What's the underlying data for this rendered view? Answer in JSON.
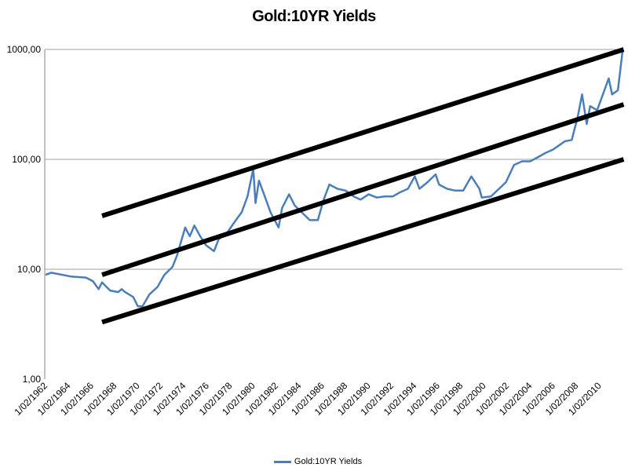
{
  "chart_data": {
    "type": "line",
    "title": "Gold:10YR Yields",
    "xlabel": "",
    "ylabel": "",
    "y_scale": "log",
    "ylim": [
      1,
      1000
    ],
    "y_ticks": [
      "1000,00",
      "100,00",
      "10,00",
      "1,00"
    ],
    "y_tick_values": [
      1000,
      100,
      10,
      1
    ],
    "xlim": [
      1962,
      2012
    ],
    "x_ticks": [
      "1/02/1962",
      "1/02/1964",
      "1/02/1966",
      "1/02/1968",
      "1/02/1970",
      "1/02/1972",
      "1/02/1974",
      "1/02/1976",
      "1/02/1978",
      "1/02/1980",
      "1/02/1982",
      "1/02/1984",
      "1/02/1986",
      "1/02/1988",
      "1/02/1990",
      "1/02/1992",
      "1/02/1994",
      "1/02/1996",
      "1/02/1998",
      "1/02/2000",
      "1/02/2002",
      "1/02/2004",
      "1/02/2006",
      "1/02/2008",
      "1/02/2010"
    ],
    "grid": "horizontal major",
    "legend": "bottom",
    "series": [
      {
        "name": "Gold:10YR Yields",
        "color": "#4a7ebb",
        "x": [
          1962.0,
          1962.5,
          1964.2,
          1965.5,
          1966.1,
          1966.6,
          1966.9,
          1967.6,
          1968.3,
          1968.6,
          1968.9,
          1969.6,
          1970.0,
          1970.4,
          1971.0,
          1971.7,
          1972.3,
          1973.0,
          1973.4,
          1973.8,
          1974.1,
          1974.5,
          1974.9,
          1975.4,
          1975.9,
          1976.6,
          1977.0,
          1977.8,
          1978.5,
          1979.0,
          1979.5,
          1980.0,
          1980.2,
          1980.5,
          1981.0,
          1981.5,
          1982.2,
          1982.5,
          1983.1,
          1983.6,
          1984.2,
          1984.9,
          1985.6,
          1986.1,
          1986.6,
          1987.3,
          1988.0,
          1988.7,
          1989.3,
          1990.0,
          1990.7,
          1991.4,
          1992.1,
          1992.7,
          1993.4,
          1994.0,
          1994.4,
          1995.1,
          1995.8,
          1996.1,
          1996.8,
          1997.5,
          1998.2,
          1998.9,
          1999.6,
          1999.8,
          2000.6,
          2001.3,
          2001.9,
          2002.6,
          2003.3,
          2004.0,
          2004.7,
          2005.3,
          2006.0,
          2006.5,
          2007.0,
          2007.6,
          2008.1,
          2008.5,
          2008.9,
          2009.2,
          2009.8,
          2010.3,
          2010.8,
          2011.1,
          2011.6,
          2011.8,
          2012.0
        ],
        "y": [
          8.9,
          9.3,
          8.6,
          8.4,
          7.8,
          6.6,
          7.6,
          6.4,
          6.2,
          6.6,
          6.2,
          5.6,
          4.6,
          4.6,
          5.9,
          6.9,
          8.9,
          10.5,
          13.4,
          18.7,
          24,
          20,
          25,
          20,
          16.6,
          14.6,
          18.7,
          22,
          28,
          33,
          46,
          82,
          40,
          64,
          46,
          33,
          24,
          36,
          48,
          38,
          33,
          28,
          28,
          43,
          59,
          54,
          52,
          46,
          43,
          48,
          45,
          46,
          46,
          50,
          54,
          70,
          54,
          62,
          73,
          59,
          54,
          52,
          52,
          70,
          54,
          45,
          46,
          54,
          62,
          89,
          96,
          96,
          105,
          114,
          123,
          134,
          146,
          150,
          239,
          390,
          210,
          305,
          280,
          390,
          545,
          390,
          425,
          640,
          960
        ]
      }
    ],
    "trendlines": [
      {
        "color": "#000000",
        "x": [
          1966.9,
          2012.1
        ],
        "y": [
          30.6,
          1000
        ]
      },
      {
        "color": "#000000",
        "x": [
          1966.9,
          2012.1
        ],
        "y": [
          8.9,
          316
        ]
      },
      {
        "color": "#000000",
        "x": [
          1966.9,
          2012.1
        ],
        "y": [
          3.3,
          100
        ]
      }
    ]
  }
}
